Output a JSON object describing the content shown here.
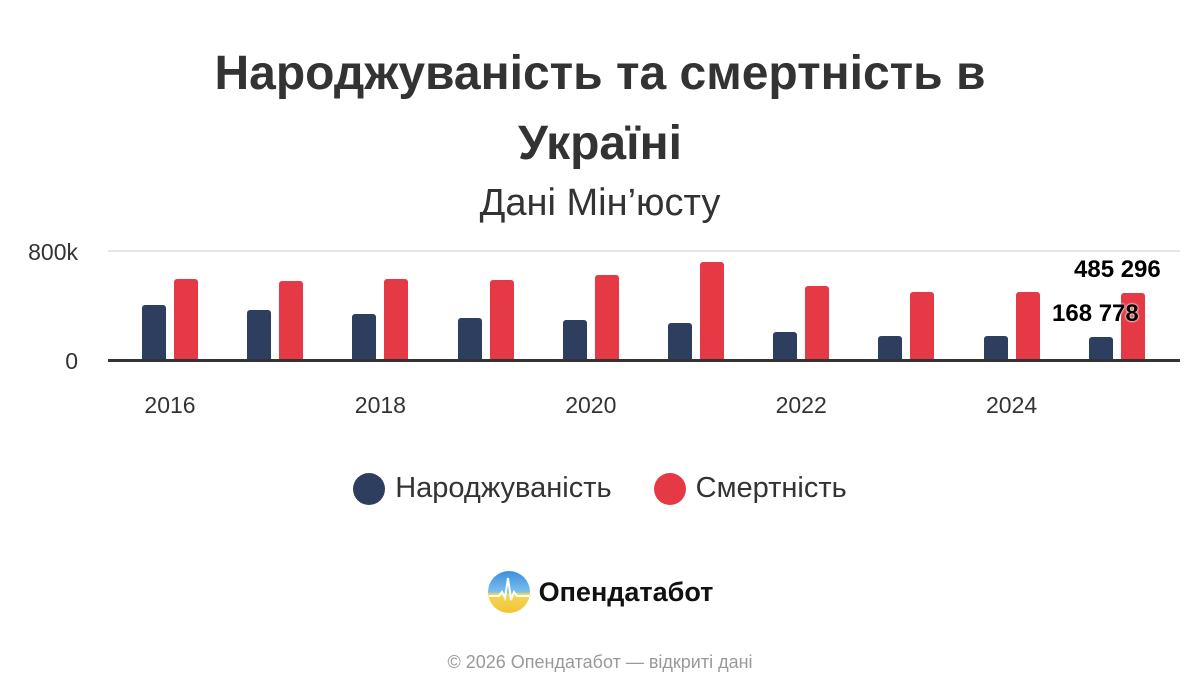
{
  "header": {
    "title_line1": "Народжуваність та смертність в",
    "title_line2": "Україні",
    "subtitle": "Дані Мін’юсту"
  },
  "chart_data": {
    "type": "bar",
    "title": "Народжуваність та смертність в Україні",
    "subtitle": "Дані Мін’юсту",
    "xlabel": "",
    "ylabel": "",
    "ylim": [
      0,
      800000
    ],
    "y_ticks": [
      "0",
      "800k"
    ],
    "grid": true,
    "legend_position": "bottom",
    "categories": [
      "2016",
      "2017",
      "2018",
      "2019",
      "2020",
      "2021",
      "2022",
      "2023",
      "2024",
      "2025"
    ],
    "x_tick_labels": [
      "2016",
      "2018",
      "2020",
      "2022",
      "2024"
    ],
    "series": [
      {
        "name": "Народжуваність",
        "color": "#2e3e5f",
        "values": [
          397000,
          364000,
          335000,
          308000,
          293000,
          271000,
          207000,
          178000,
          177000,
          168778
        ]
      },
      {
        "name": "Смертність",
        "color": "#e63946",
        "values": [
          587000,
          574000,
          588000,
          581000,
          616000,
          714000,
          541000,
          497000,
          496000,
          485296
        ]
      }
    ],
    "annotations": [
      {
        "series": "Смертність",
        "category": "2025",
        "label": "485 296"
      },
      {
        "series": "Народжуваність",
        "category": "2025",
        "label": "168 778"
      }
    ]
  },
  "legend": {
    "items": [
      {
        "label": "Народжуваність",
        "color": "#2e3e5f"
      },
      {
        "label": "Смертність",
        "color": "#e63946"
      }
    ]
  },
  "brand": {
    "name": "Опендатабот",
    "icon": "opendatabot-logo-icon"
  },
  "footer": {
    "text": "© 2026 Опендатабот — відкриті дані"
  }
}
